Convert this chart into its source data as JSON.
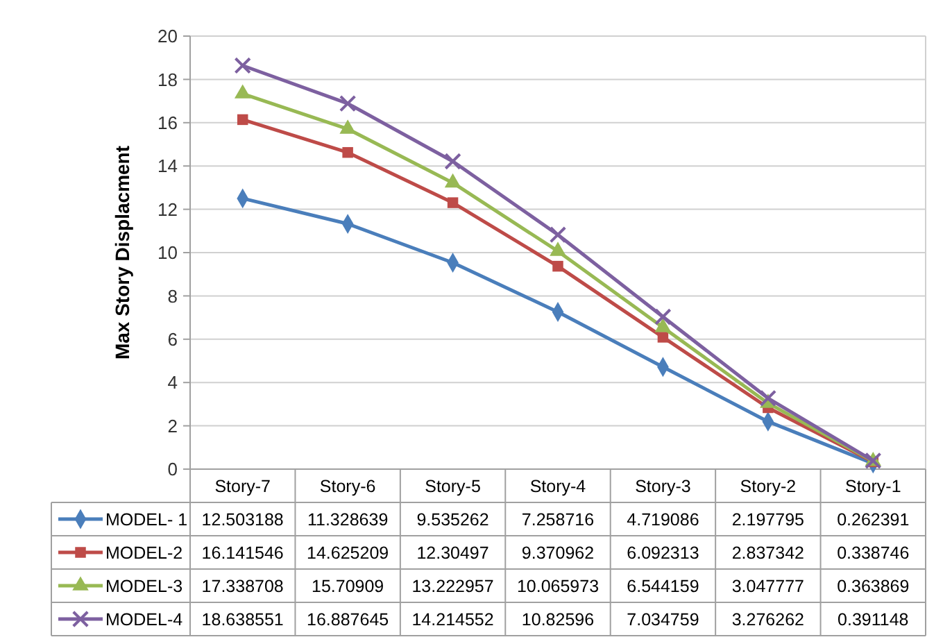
{
  "chart_data": {
    "type": "line",
    "ylabel": "Max Story Displacment",
    "categories": [
      "Story-7",
      "Story-6",
      "Story-5",
      "Story-4",
      "Story-3",
      "Story-2",
      "Story-1"
    ],
    "series": [
      {
        "name": "MODEL- 1",
        "color": "#4a7ebb",
        "marker": "diamond",
        "values": [
          12.503188,
          11.328639,
          9.535262,
          7.258716,
          4.719086,
          2.197795,
          0.262391
        ]
      },
      {
        "name": "MODEL-2",
        "color": "#be4b48",
        "marker": "square",
        "values": [
          16.141546,
          14.625209,
          12.30497,
          9.370962,
          6.092313,
          2.837342,
          0.338746
        ]
      },
      {
        "name": "MODEL-3",
        "color": "#98b954",
        "marker": "triangle",
        "values": [
          17.338708,
          15.70909,
          13.222957,
          10.065973,
          6.544159,
          3.047777,
          0.363869
        ]
      },
      {
        "name": "MODEL-4",
        "color": "#7d60a0",
        "marker": "cross",
        "values": [
          18.638551,
          16.887645,
          14.214552,
          10.82596,
          7.034759,
          3.276262,
          0.391148
        ]
      }
    ],
    "ylim": [
      0,
      20
    ],
    "yticks": [
      0,
      2,
      4,
      6,
      8,
      10,
      12,
      14,
      16,
      18,
      20
    ],
    "grid": "y",
    "legend": "bottom",
    "data_labels": true,
    "line_style": "solid"
  }
}
